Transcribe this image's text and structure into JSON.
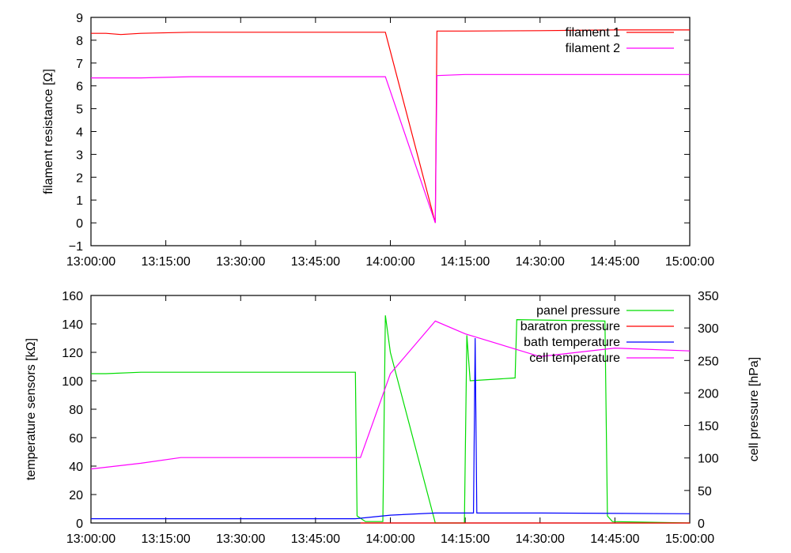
{
  "chart_data": [
    {
      "type": "line",
      "title": "",
      "xlabel": "",
      "ylabel": "filament resistance [Ω]",
      "x_ticks": [
        "13:00:00",
        "13:15:00",
        "13:30:00",
        "13:45:00",
        "14:00:00",
        "14:15:00",
        "14:30:00",
        "14:45:00",
        "15:00:00"
      ],
      "xlim": [
        "13:00:00",
        "15:00:00"
      ],
      "ylim": [
        -1,
        9
      ],
      "y_ticks": [
        "−1",
        "0",
        "1",
        "2",
        "3",
        "4",
        "5",
        "6",
        "7",
        "8",
        "9"
      ],
      "grid": false,
      "legend_position": "top-right",
      "series": [
        {
          "name": "filament 1",
          "color": "#ff0000",
          "x": [
            "13:00:00",
            "13:03:00",
            "13:06:00",
            "13:10:00",
            "13:20:00",
            "13:30:00",
            "13:45:00",
            "13:59:00",
            "14:09:00",
            "14:09:20",
            "14:15:00",
            "14:30:00",
            "14:45:00",
            "15:00:00"
          ],
          "y": [
            8.3,
            8.3,
            8.25,
            8.3,
            8.35,
            8.35,
            8.35,
            8.35,
            0,
            8.4,
            8.4,
            8.42,
            8.45,
            8.45
          ]
        },
        {
          "name": "filament 2",
          "color": "#ff00ff",
          "x": [
            "13:00:00",
            "13:10:00",
            "13:20:00",
            "13:30:00",
            "13:45:00",
            "13:59:00",
            "14:09:00",
            "14:09:20",
            "14:15:00",
            "14:30:00",
            "14:45:00",
            "15:00:00"
          ],
          "y": [
            6.35,
            6.35,
            6.4,
            6.4,
            6.4,
            6.4,
            0,
            6.45,
            6.5,
            6.5,
            6.5,
            6.5
          ]
        }
      ]
    },
    {
      "type": "line",
      "title": "",
      "xlabel": "",
      "ylabel": "temperature sensors [kΩ]",
      "y2label": "cell pressure [hPa]",
      "x_ticks": [
        "13:00:00",
        "13:15:00",
        "13:30:00",
        "13:45:00",
        "14:00:00",
        "14:15:00",
        "14:30:00",
        "14:45:00",
        "15:00:00"
      ],
      "xlim": [
        "13:00:00",
        "15:00:00"
      ],
      "ylim": [
        0,
        160
      ],
      "y_ticks": [
        "0",
        "20",
        "40",
        "60",
        "80",
        "100",
        "120",
        "140",
        "160"
      ],
      "y2lim": [
        0,
        350
      ],
      "y2_ticks": [
        "0",
        "50",
        "100",
        "150",
        "200",
        "250",
        "300",
        "350"
      ],
      "grid": false,
      "legend_position": "top-right",
      "series": [
        {
          "name": "panel pressure",
          "color": "#00dd00",
          "axis": "y",
          "x": [
            "13:00:00",
            "13:03:00",
            "13:10:00",
            "13:30:00",
            "13:50:00",
            "13:53:00",
            "13:53:20",
            "13:55:00",
            "13:58:30",
            "13:59:00",
            "14:00:00",
            "14:09:00",
            "14:14:50",
            "14:15:20",
            "14:16:00",
            "14:25:00",
            "14:25:20",
            "14:43:00",
            "14:43:30",
            "14:44:30",
            "15:00:00"
          ],
          "y": [
            105,
            105,
            106,
            106,
            106,
            106,
            5,
            1,
            1,
            146,
            120,
            0,
            0,
            132,
            100,
            102,
            143,
            142,
            5,
            1,
            0
          ]
        },
        {
          "name": "baratron pressure",
          "color": "#ff0000",
          "axis": "y",
          "x": [
            "13:54:00",
            "14:09:00",
            "14:14:00",
            "14:15:00",
            "14:44:00",
            "15:00:00"
          ],
          "y": [
            0,
            0,
            0,
            0,
            0,
            0
          ]
        },
        {
          "name": "bath temperature",
          "color": "#0000ff",
          "axis": "y",
          "x": [
            "13:00:00",
            "13:53:00",
            "14:00:00",
            "14:09:00",
            "14:15:00",
            "14:16:40",
            "14:17:00",
            "14:17:20",
            "14:30:00",
            "15:00:00"
          ],
          "y": [
            3,
            3,
            5.5,
            7,
            7,
            7,
            130,
            7,
            7,
            6.5
          ]
        },
        {
          "name": "cell temperature",
          "color": "#ff00ff",
          "axis": "y",
          "x": [
            "13:00:00",
            "13:10:00",
            "13:18:00",
            "13:30:00",
            "13:45:00",
            "13:54:00",
            "14:00:00",
            "14:09:00",
            "14:15:00",
            "14:30:00",
            "14:45:00",
            "15:00:00"
          ],
          "y": [
            38,
            42,
            46,
            46,
            46,
            46,
            105,
            142,
            133,
            117,
            123,
            121
          ]
        }
      ]
    }
  ]
}
